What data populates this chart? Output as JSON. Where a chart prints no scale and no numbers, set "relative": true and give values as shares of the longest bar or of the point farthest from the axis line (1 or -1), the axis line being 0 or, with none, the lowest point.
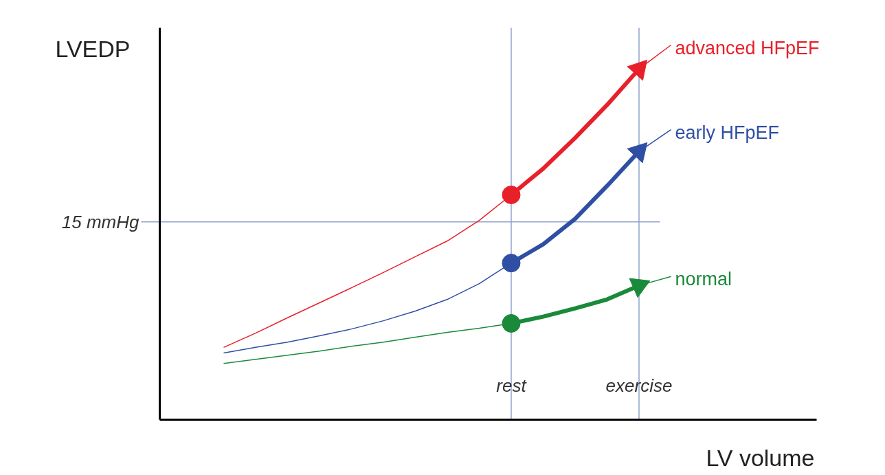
{
  "chart_data": {
    "type": "line",
    "relative": true,
    "xlabel": "LV volume",
    "ylabel": "LVEDP",
    "categories": [
      null,
      null,
      null,
      null,
      null,
      null,
      null,
      null,
      null,
      "rest",
      null,
      null,
      null,
      "exercise",
      null
    ],
    "series": [
      {
        "name": "advanced HFpEF",
        "color": "#e8202a",
        "values": [
          0.193,
          0.231,
          0.272,
          0.312,
          0.352,
          0.393,
          0.435,
          0.477,
          0.532,
          0.6,
          0.67,
          0.752,
          0.84,
          0.936,
          1.0
        ]
      },
      {
        "color": "#e8202a",
        "values": [
          null,
          null,
          null,
          null,
          null,
          null,
          null,
          null,
          null,
          0.6,
          0.67,
          0.752,
          0.84,
          0.936,
          null
        ]
      },
      {
        "name": "early HFpEF",
        "color": "#2e4fa3",
        "values": [
          0.178,
          0.193,
          0.207,
          0.224,
          0.242,
          0.264,
          0.29,
          0.321,
          0.363,
          0.418,
          0.468,
          0.536,
          0.624,
          0.716,
          0.774
        ]
      },
      {
        "color": "#2e4fa3",
        "values": [
          null,
          null,
          null,
          null,
          null,
          null,
          null,
          null,
          null,
          0.418,
          0.468,
          0.536,
          0.624,
          0.716,
          null
        ]
      },
      {
        "name": "normal",
        "color": "#1a8a3a",
        "values": [
          0.15,
          0.161,
          0.172,
          0.183,
          0.196,
          0.207,
          0.22,
          0.233,
          0.244,
          0.257,
          0.275,
          0.297,
          0.321,
          0.358,
          0.382
        ]
      },
      {
        "color": "#1a8a3a",
        "values": [
          null,
          null,
          null,
          null,
          null,
          null,
          null,
          null,
          null,
          0.257,
          0.275,
          0.297,
          0.321,
          0.358,
          null
        ]
      }
    ],
    "ref_lines": [
      {
        "axis": "y",
        "value": 0.528,
        "label": "15 mmHg",
        "color": "#8fa3cf"
      },
      {
        "axis": "x",
        "value": "rest",
        "color": "#8fa3cf"
      },
      {
        "axis": "x",
        "value": "exercise",
        "color": "#8fa3cf"
      }
    ],
    "grid": false,
    "legend": false
  }
}
